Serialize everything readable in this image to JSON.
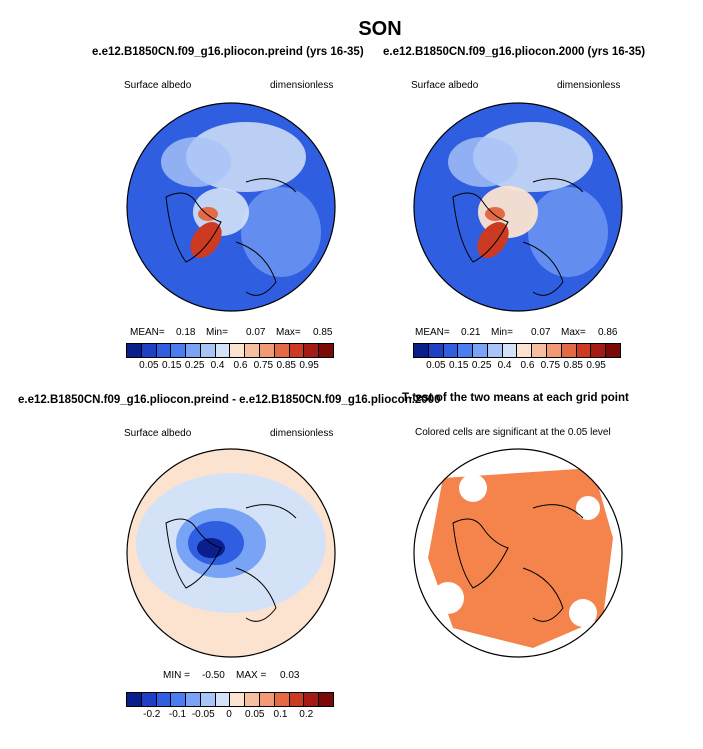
{
  "title": "SON",
  "panels": [
    {
      "run_title": "e.e12.B1850CN.f09_g16.pliocon.preind (yrs 16-35)",
      "left_label": "Surface albedo",
      "right_label": "dimensionless",
      "stats": {
        "mean_label": "MEAN=",
        "mean": "0.18",
        "min_label": "Min=",
        "min": "0.07",
        "max_label": "Max=",
        "max": "0.85"
      },
      "colorbar_ticks": [
        "0.05",
        "0.15",
        "0.25",
        "0.4",
        "0.6",
        "0.75",
        "0.85",
        "0.95"
      ]
    },
    {
      "run_title": "e.e12.B1850CN.f09_g16.pliocon.2000 (yrs 16-35)",
      "left_label": "Surface albedo",
      "right_label": "dimensionless",
      "stats": {
        "mean_label": "MEAN=",
        "mean": "0.21",
        "min_label": "Min=",
        "min": "0.07",
        "max_label": "Max=",
        "max": "0.86"
      },
      "colorbar_ticks": [
        "0.05",
        "0.15",
        "0.25",
        "0.4",
        "0.6",
        "0.75",
        "0.85",
        "0.95"
      ]
    },
    {
      "run_title": "e.e12.B1850CN.f09_g16.pliocon.preind - e.e12.B1850CN.f09_g16.pliocon.2000",
      "left_label": "Surface albedo",
      "right_label": "dimensionless",
      "stats": {
        "min_label": "MIN =",
        "min": "-0.50",
        "max_label": "MAX =",
        "max": "0.03"
      },
      "colorbar_ticks": [
        "-0.2",
        "-0.1",
        "-0.05",
        "0",
        "0.05",
        "0.1",
        "0.2"
      ]
    },
    {
      "run_title": "T-test of the two means at each grid point",
      "subtitle": "Colored cells are significant at the 0.05 level"
    }
  ],
  "colors": {
    "abs_scale": [
      "#0a1e8c",
      "#1f3fc4",
      "#2f5fe0",
      "#4a7ef0",
      "#79a3f5",
      "#a9c4f7",
      "#d4e2f7",
      "#fbe3d0",
      "#f7bfa0",
      "#f19a74",
      "#e46a45",
      "#cd3a22",
      "#a41a14",
      "#7a0a08"
    ],
    "diff_scale": [
      "#0a1e8c",
      "#1f3fc4",
      "#2f5fe0",
      "#4a7ef0",
      "#79a3f5",
      "#a9c4f7",
      "#d4e2f7",
      "#fbe3d0",
      "#f7bfa0",
      "#f19a74",
      "#e46a45",
      "#cd3a22",
      "#a41a14",
      "#7a0a08"
    ],
    "significant": "#f4844c"
  }
}
